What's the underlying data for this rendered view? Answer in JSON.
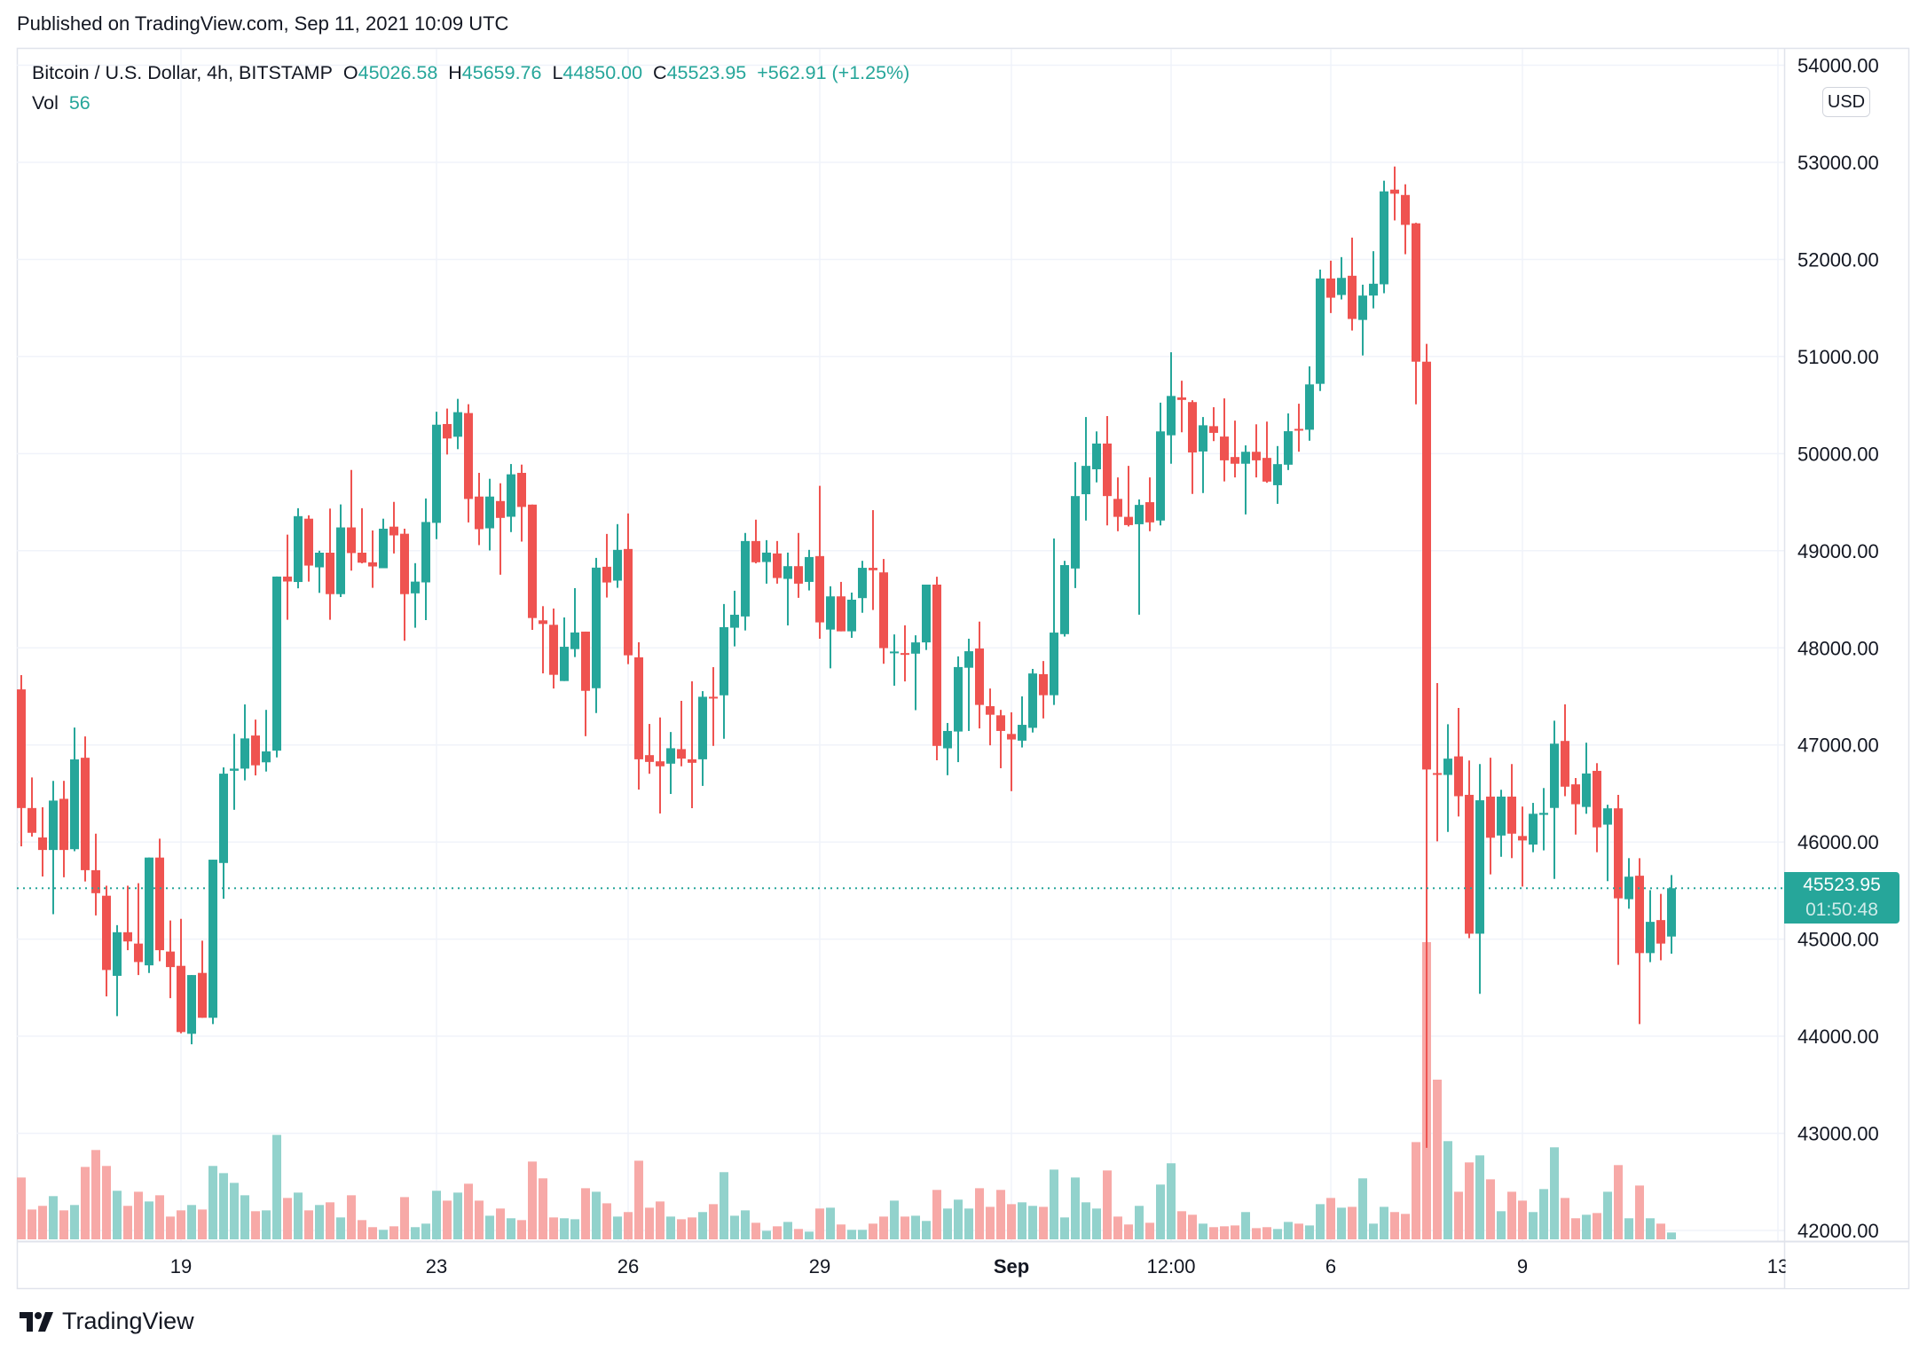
{
  "published": "Published on TradingView.com, Sep 11, 2021 10:09 UTC",
  "legend": {
    "symbol": "Bitcoin / U.S. Dollar, 4h, BITSTAMP",
    "o_label": "O",
    "o": "45026.58",
    "h_label": "H",
    "h": "45659.76",
    "l_label": "L",
    "l": "44850.00",
    "c_label": "C",
    "c": "45523.95",
    "change": "+562.91 (+1.25%)",
    "vol_label": "Vol",
    "vol": "56"
  },
  "currency_badge": "USD",
  "last_price": {
    "price": "45523.95",
    "countdown": "01:50:48"
  },
  "footer": {
    "brand": "TradingView"
  },
  "colors": {
    "up": "#26a69a",
    "down": "#ef5350",
    "up_volume": "#92d2cc",
    "down_volume": "#f7a9a7",
    "grid": "#f0f3fa"
  },
  "chart_data": {
    "type": "candlestick",
    "symbol": "Bitcoin / U.S. Dollar",
    "interval": "4h",
    "exchange": "BITSTAMP",
    "ylim": [
      41900,
      54000
    ],
    "grid": true,
    "price_ticks": [
      "42000.00",
      "43000.00",
      "44000.00",
      "45000.00",
      "46000.00",
      "47000.00",
      "48000.00",
      "49000.00",
      "50000.00",
      "51000.00",
      "52000.00",
      "53000.00",
      "54000.00"
    ],
    "price_tick_values": [
      42000,
      43000,
      44000,
      45000,
      46000,
      47000,
      48000,
      49000,
      50000,
      51000,
      52000,
      53000,
      54000
    ],
    "time_ticks": [
      {
        "label": "19",
        "at_bar": 15
      },
      {
        "label": "23",
        "at_bar": 39
      },
      {
        "label": "26",
        "at_bar": 57
      },
      {
        "label": "29",
        "at_bar": 75
      },
      {
        "label": "Sep",
        "at_bar": 93,
        "bold": true
      },
      {
        "label": "12:00",
        "at_bar": 108
      },
      {
        "label": "6",
        "at_bar": 123
      },
      {
        "label": "9",
        "at_bar": 141
      },
      {
        "label": "13",
        "at_bar": 165
      }
    ],
    "ohlc_fields": [
      "open",
      "high",
      "low",
      "close"
    ],
    "candles": [
      [
        47572,
        47719,
        45956,
        46350
      ],
      [
        46350,
        46665,
        46056,
        46095
      ],
      [
        46047,
        46358,
        45645,
        45918
      ],
      [
        45918,
        46630,
        45257,
        46427
      ],
      [
        46445,
        46630,
        45637,
        45918
      ],
      [
        45926,
        47179,
        45905,
        46851
      ],
      [
        46868,
        47088,
        45594,
        45710
      ],
      [
        45710,
        46086,
        45244,
        45473
      ],
      [
        45447,
        45550,
        44410,
        44682
      ],
      [
        44622,
        45144,
        44207,
        45071
      ],
      [
        45071,
        45550,
        44886,
        44976
      ],
      [
        44954,
        45576,
        44630,
        44764
      ],
      [
        44730,
        45840,
        44652,
        45840
      ],
      [
        45840,
        46034,
        44773,
        44886
      ],
      [
        44872,
        45192,
        44392,
        44712
      ],
      [
        44725,
        45209,
        44030,
        44043
      ],
      [
        44025,
        44630,
        43917,
        44630
      ],
      [
        44652,
        44984,
        44190,
        44190
      ],
      [
        44190,
        45818,
        44125,
        45818
      ],
      [
        45784,
        46769,
        45416,
        46704
      ],
      [
        46734,
        47114,
        46332,
        46756
      ],
      [
        46756,
        47417,
        46635,
        47067
      ],
      [
        47097,
        47261,
        46686,
        46790
      ],
      [
        46821,
        47361,
        46726,
        46933
      ],
      [
        46941,
        48734,
        46872,
        48734
      ],
      [
        48734,
        49166,
        48289,
        48683
      ],
      [
        48678,
        49438,
        48613,
        49356
      ],
      [
        49330,
        49365,
        48682,
        48847
      ],
      [
        48829,
        49000,
        48566,
        48980
      ],
      [
        48980,
        49434,
        48289,
        48553
      ],
      [
        48553,
        49477,
        48523,
        49240
      ],
      [
        49240,
        49832,
        48795,
        48976
      ],
      [
        48980,
        49438,
        48870,
        48877
      ],
      [
        48881,
        49209,
        48618,
        48838
      ],
      [
        48820,
        49330,
        48820,
        49227
      ],
      [
        49248,
        49503,
        48972,
        49158
      ],
      [
        49175,
        49227,
        48073,
        48553
      ],
      [
        48561,
        48872,
        48207,
        48682
      ],
      [
        48674,
        49538,
        48285,
        49296
      ],
      [
        49287,
        50432,
        49119,
        50298
      ],
      [
        50305,
        50464,
        49991,
        50156
      ],
      [
        50174,
        50564,
        50046,
        50427
      ],
      [
        50418,
        50509,
        49292,
        49533
      ],
      [
        49558,
        49802,
        49058,
        49222
      ],
      [
        49231,
        49741,
        49003,
        49558
      ],
      [
        49512,
        49695,
        48753,
        49338
      ],
      [
        49350,
        49893,
        49192,
        49787
      ],
      [
        49802,
        49887,
        49094,
        49451
      ],
      [
        49475,
        49475,
        48185,
        48307
      ],
      [
        48283,
        48429,
        47737,
        48246
      ],
      [
        48237,
        48405,
        47581,
        47722
      ],
      [
        47658,
        48313,
        47658,
        48011
      ],
      [
        47987,
        48615,
        47905,
        48158
      ],
      [
        48167,
        48167,
        47090,
        47557
      ],
      [
        47584,
        48926,
        47328,
        48826
      ],
      [
        48835,
        49173,
        48518,
        48673
      ],
      [
        48692,
        49274,
        48618,
        49009
      ],
      [
        49018,
        49384,
        47832,
        47923
      ],
      [
        47902,
        48057,
        46541,
        46852
      ],
      [
        46895,
        47216,
        46703,
        46825
      ],
      [
        46831,
        47283,
        46294,
        46780
      ],
      [
        46807,
        47133,
        46495,
        46966
      ],
      [
        46957,
        47454,
        46780,
        46859
      ],
      [
        46852,
        47655,
        46349,
        46816
      ],
      [
        46852,
        47554,
        46578,
        47496
      ],
      [
        47496,
        47801,
        46990,
        47484
      ],
      [
        47511,
        48451,
        47063,
        48213
      ],
      [
        48207,
        48588,
        48015,
        48341
      ],
      [
        48323,
        49183,
        48179,
        49100
      ],
      [
        49100,
        49320,
        48870,
        48881
      ],
      [
        48884,
        49109,
        48661,
        48981
      ],
      [
        48972,
        49100,
        48661,
        48719
      ],
      [
        48710,
        48981,
        48231,
        48841
      ],
      [
        48841,
        49183,
        48515,
        48661
      ],
      [
        48679,
        49009,
        48591,
        48935
      ],
      [
        48945,
        49668,
        48094,
        48262
      ],
      [
        48188,
        48634,
        47789,
        48530
      ],
      [
        48530,
        48679,
        48170,
        48170
      ],
      [
        48170,
        48569,
        48103,
        48496
      ],
      [
        48512,
        48896,
        48361,
        48824
      ],
      [
        48824,
        49418,
        48390,
        48799
      ],
      [
        48777,
        48915,
        47836,
        47997
      ],
      [
        47949,
        48138,
        47610,
        47962
      ],
      [
        47946,
        48232,
        47654,
        47930
      ],
      [
        47940,
        48129,
        47358,
        48056
      ],
      [
        48056,
        48651,
        47978,
        48651
      ],
      [
        48651,
        48732,
        46842,
        46990
      ],
      [
        46965,
        47226,
        46688,
        47144
      ],
      [
        47138,
        47912,
        46823,
        47802
      ],
      [
        47795,
        48094,
        47144,
        47965
      ],
      [
        47993,
        48270,
        47170,
        47412
      ],
      [
        47399,
        47581,
        46996,
        47311
      ],
      [
        47305,
        47361,
        46760,
        47144
      ],
      [
        47113,
        47336,
        46524,
        47056
      ],
      [
        47044,
        47500,
        46974,
        47207
      ],
      [
        47176,
        47783,
        47128,
        47736
      ],
      [
        47729,
        47864,
        47273,
        47512
      ],
      [
        47512,
        49126,
        47412,
        48157
      ],
      [
        48141,
        48896,
        48116,
        48852
      ],
      [
        48817,
        49912,
        48616,
        49563
      ],
      [
        49582,
        50377,
        49311,
        49874
      ],
      [
        49839,
        50229,
        49704,
        50104
      ],
      [
        50104,
        50387,
        49261,
        49563
      ],
      [
        49534,
        49755,
        49201,
        49349
      ],
      [
        49349,
        49874,
        49250,
        49264
      ],
      [
        49273,
        49528,
        48342,
        49472
      ],
      [
        49500,
        49755,
        49201,
        49292
      ],
      [
        49311,
        50525,
        49261,
        50229
      ],
      [
        50189,
        51044,
        49896,
        50594
      ],
      [
        50579,
        50751,
        50220,
        50553
      ],
      [
        50531,
        50550,
        49585,
        50012
      ],
      [
        50022,
        50377,
        49594,
        50292
      ],
      [
        50283,
        50478,
        50129,
        50214
      ],
      [
        50176,
        50569,
        49714,
        49931
      ],
      [
        49965,
        50340,
        49755,
        49896
      ],
      [
        49896,
        50085,
        49374,
        50019
      ],
      [
        50019,
        50302,
        49755,
        49931
      ],
      [
        49956,
        50330,
        49700,
        49712
      ],
      [
        49675,
        50078,
        49483,
        49892
      ],
      [
        49886,
        50414,
        49831,
        50231
      ],
      [
        50255,
        50514,
        50020,
        50240
      ],
      [
        50246,
        50899,
        50133,
        50713
      ],
      [
        50719,
        51896,
        50645,
        51804
      ],
      [
        51804,
        51987,
        51448,
        51606
      ],
      [
        51634,
        52024,
        51588,
        51810
      ],
      [
        51832,
        52225,
        51268,
        51387
      ],
      [
        51377,
        51740,
        51011,
        51628
      ],
      [
        51628,
        52085,
        51496,
        51750
      ],
      [
        51744,
        52811,
        51652,
        52701
      ],
      [
        52719,
        52957,
        52402,
        52677
      ],
      [
        52664,
        52774,
        52054,
        52356
      ],
      [
        52372,
        52378,
        50508,
        50947
      ],
      [
        50947,
        51130,
        42850,
        46747
      ],
      [
        46710,
        47637,
        46007,
        46696
      ],
      [
        46691,
        47213,
        46104,
        46859
      ],
      [
        46882,
        47381,
        46263,
        46472
      ],
      [
        46486,
        46840,
        45010,
        45056
      ],
      [
        45056,
        46803,
        44437,
        46430
      ],
      [
        46468,
        46868,
        45667,
        46044
      ],
      [
        46067,
        46538,
        45848,
        46468
      ],
      [
        46468,
        46803,
        45834,
        46086
      ],
      [
        46062,
        46365,
        45541,
        46016
      ],
      [
        45974,
        46403,
        45895,
        46291
      ],
      [
        46280,
        46556,
        45914,
        46300
      ],
      [
        46351,
        47250,
        45620,
        47013
      ],
      [
        47041,
        47418,
        46472,
        46570
      ],
      [
        46594,
        46659,
        46077,
        46389
      ],
      [
        46361,
        47023,
        46291,
        46706
      ],
      [
        46733,
        46812,
        45895,
        46151
      ],
      [
        46179,
        46384,
        45597,
        46347
      ],
      [
        46347,
        46486,
        44735,
        45420
      ],
      [
        45411,
        45834,
        45313,
        45643
      ],
      [
        45653,
        45834,
        44125,
        44856
      ],
      [
        44856,
        45504,
        44763,
        45178
      ],
      [
        45196,
        45466,
        44782,
        44954
      ],
      [
        45026.58,
        45659.76,
        44850,
        45523.95
      ]
    ],
    "volumes": [
      508,
      245,
      275,
      355,
      238,
      282,
      595,
      734,
      603,
      399,
      275,
      391,
      311,
      362,
      187,
      238,
      282,
      245,
      603,
      544,
      464,
      362,
      231,
      238,
      858,
      340,
      384,
      238,
      282,
      304,
      180,
      362,
      158,
      100,
      78,
      107,
      347,
      100,
      129,
      399,
      318,
      384,
      457,
      318,
      194,
      253,
      173,
      158,
      639,
      501,
      180,
      173,
      165,
      420,
      391,
      296,
      187,
      224,
      646,
      260,
      311,
      187,
      165,
      180,
      224,
      289,
      552,
      194,
      238,
      136,
      70,
      107,
      143,
      85,
      63,
      253,
      260,
      122,
      78,
      78,
      129,
      187,
      318,
      187,
      194,
      151,
      406,
      253,
      326,
      253,
      420,
      267,
      406,
      289,
      304,
      275,
      267,
      573,
      180,
      508,
      304,
      253,
      566,
      187,
      122,
      275,
      136,
      450,
      625,
      231,
      202,
      129,
      100,
      107,
      114,
      224,
      92,
      100,
      85,
      143,
      129,
      114,
      289,
      340,
      260,
      267,
      501,
      129,
      267,
      224,
      209,
      799,
      2442,
      1312,
      807,
      391,
      632,
      690,
      493,
      231,
      391,
      318,
      224,
      413,
      756,
      340,
      173,
      202,
      216,
      391,
      610,
      173,
      442,
      173,
      129,
      56
    ],
    "last_price_value": 45523.95
  }
}
